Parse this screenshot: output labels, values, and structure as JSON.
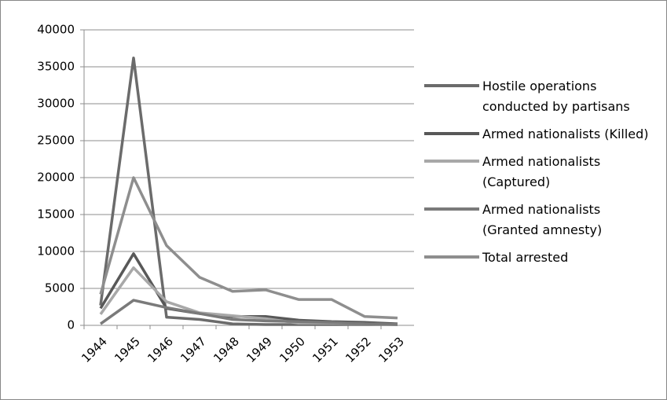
{
  "chart_data": {
    "type": "line",
    "categories": [
      "1944",
      "1945",
      "1946",
      "1947",
      "1948",
      "1949",
      "1950",
      "1951",
      "1952",
      "1953"
    ],
    "series": [
      {
        "name": "Hostile operations conducted by partisans",
        "color": "#6b6b6b",
        "values": [
          2700,
          36200,
          1100,
          800,
          200,
          100,
          100,
          100,
          100,
          100
        ]
      },
      {
        "name": "Armed nationalists (Killed)",
        "color": "#585858",
        "values": [
          2300,
          9700,
          2300,
          1600,
          1200,
          1200,
          700,
          500,
          400,
          200
        ]
      },
      {
        "name": "Armed nationalists (Captured)",
        "color": "#a8a8a8",
        "values": [
          1500,
          7800,
          3200,
          1700,
          1300,
          900,
          300,
          300,
          200,
          100
        ]
      },
      {
        "name": "Armed nationalists (Granted amnesty)",
        "color": "#7a7a7a",
        "values": [
          200,
          3400,
          2400,
          1600,
          800,
          600,
          500,
          400,
          200,
          100
        ]
      },
      {
        "name": "Total arrested",
        "color": "#8e8e8e",
        "values": [
          4200,
          20000,
          10800,
          6500,
          4600,
          4800,
          3500,
          3500,
          1200,
          1000
        ]
      }
    ],
    "ylim": [
      0,
      40000
    ],
    "yticks": [
      0,
      5000,
      10000,
      15000,
      20000,
      25000,
      30000,
      35000,
      40000
    ],
    "grid": true,
    "legend": "right"
  }
}
